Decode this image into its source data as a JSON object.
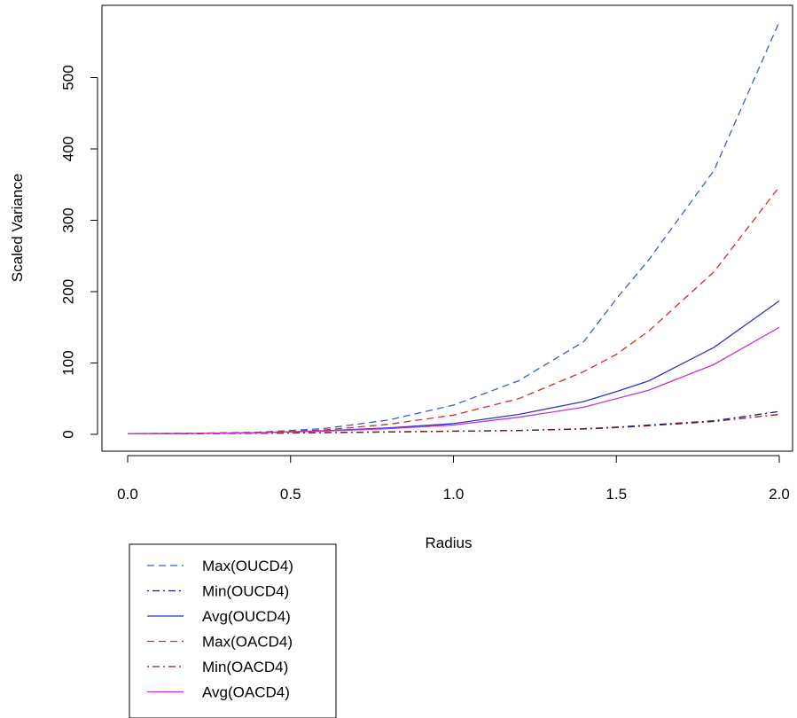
{
  "chart_data": {
    "type": "line",
    "title": "",
    "xlabel": "Radius",
    "ylabel": "Scaled Variance",
    "xlim": [
      0,
      2
    ],
    "ylim": [
      0,
      580
    ],
    "x_ticks": [
      "0.0",
      "0.5",
      "1.0",
      "1.5",
      "2.0"
    ],
    "y_ticks": [
      "0",
      "100",
      "200",
      "300",
      "400",
      "500"
    ],
    "x": [
      0,
      0.2,
      0.4,
      0.6,
      0.8,
      1.0,
      1.2,
      1.4,
      1.5,
      1.6,
      1.8,
      2.0
    ],
    "series": [
      {
        "name": "Max(OUCD4)",
        "color": "#3b5fc0",
        "dash": "dashed",
        "values": [
          1,
          1.5,
          3,
          8,
          20,
          41,
          75,
          130,
          190,
          245,
          370,
          578
        ]
      },
      {
        "name": "Min(OUCD4)",
        "color": "#1a1a6e",
        "dash": "dotdash",
        "values": [
          1,
          1,
          1.5,
          2.5,
          3.5,
          4.5,
          5.5,
          8,
          10,
          13,
          19,
          32
        ]
      },
      {
        "name": "Avg(OUCD4)",
        "color": "#2b35c8",
        "dash": "solid",
        "values": [
          1,
          1.3,
          2.3,
          5,
          9,
          15,
          28,
          46,
          60,
          75,
          122,
          187
        ]
      },
      {
        "name": "Max(OACD4)",
        "color": "#d22b2b",
        "dash": "dashed",
        "values": [
          1,
          1.4,
          2.8,
          6,
          14,
          27,
          50,
          88,
          112,
          145,
          228,
          347
        ]
      },
      {
        "name": "Min(OACD4)",
        "color": "#7a1f1f",
        "dash": "dotdash",
        "values": [
          1,
          1,
          1.4,
          2.3,
          3.2,
          4.3,
          5.3,
          7.5,
          9.5,
          12,
          18,
          28
        ]
      },
      {
        "name": "Avg(OACD4)",
        "color": "#cc33cc",
        "dash": "solid",
        "values": [
          1,
          1.2,
          2,
          4.5,
          8,
          13,
          24,
          38,
          50,
          62,
          98,
          150
        ]
      }
    ],
    "legend_position": "bottom-left",
    "grid": false
  }
}
